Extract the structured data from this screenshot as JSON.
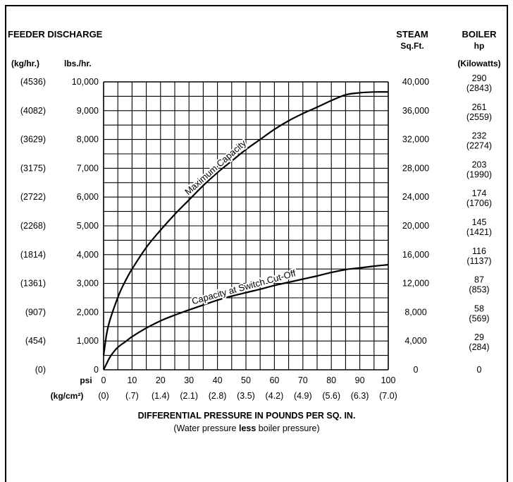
{
  "chart_data": {
    "type": "line",
    "title": "FEEDER DISCHARGE",
    "left_headers": {
      "metric": "(kg/hr.)",
      "imperial": "lbs./hr."
    },
    "right_headers": {
      "steam_title": "STEAM",
      "steam_sub": "Sq.Ft.",
      "boiler_title": "BOILER",
      "boiler_sub1": "hp",
      "boiler_sub2": "(Kilowatts)"
    },
    "y_ticks_lbs": [
      "0",
      "1,000",
      "2,000",
      "3,000",
      "4,000",
      "5,000",
      "6,000",
      "7,000",
      "8,000",
      "9,000",
      "10,000"
    ],
    "y_ticks_kg": [
      "(0)",
      "(454)",
      "(907)",
      "(1361)",
      "(1814)",
      "(2268)",
      "(2722)",
      "(3175)",
      "(3629)",
      "(4082)",
      "(4536)"
    ],
    "y_ticks_steam": [
      "0",
      "4,000",
      "8,000",
      "12,000",
      "16,000",
      "20,000",
      "24,000",
      "28,000",
      "32,000",
      "36,000",
      "40,000"
    ],
    "y_ticks_hp": [
      "0",
      "29",
      "58",
      "87",
      "116",
      "145",
      "174",
      "203",
      "232",
      "261",
      "290"
    ],
    "y_ticks_kw": [
      "",
      "(284)",
      "(569)",
      "(853)",
      "(1137)",
      "(1421)",
      "(1706)",
      "(1990)",
      "(2274)",
      "(2559)",
      "(2843)"
    ],
    "x_unit_psi": "psi",
    "x_unit_kg": "(kg/cm²)",
    "x_ticks_psi": [
      "0",
      "10",
      "20",
      "30",
      "40",
      "50",
      "60",
      "70",
      "80",
      "90",
      "100"
    ],
    "x_ticks_kg": [
      "(0)",
      "(.7)",
      "(1.4)",
      "(2.1)",
      "(2.8)",
      "(3.5)",
      "(4.2)",
      "(4.9)",
      "(5.6)",
      "(6.3)",
      "(7.0)"
    ],
    "xlabel": "DIFFERENTIAL PRESSURE IN POUNDS PER SQ. IN.",
    "xlabel_sub": {
      "pre": "(Water pressure ",
      "bold": "less",
      "post": " boiler pressure)"
    },
    "xlim": [
      0,
      100
    ],
    "ylim": [
      0,
      10000
    ],
    "grid": true,
    "series": [
      {
        "name": "Maximum Capacity",
        "x": [
          0,
          1,
          2,
          4,
          6,
          8,
          10,
          15,
          20,
          25,
          30,
          35,
          40,
          45,
          50,
          55,
          60,
          65,
          70,
          75,
          80,
          85,
          90,
          95,
          100
        ],
        "y": [
          500,
          1200,
          1650,
          2250,
          2750,
          3150,
          3500,
          4250,
          4850,
          5400,
          5900,
          6400,
          6850,
          7250,
          7650,
          8000,
          8350,
          8650,
          8900,
          9120,
          9350,
          9550,
          9620,
          9650,
          9650
        ]
      },
      {
        "name": "Capacity at Switch Cut-Off",
        "x": [
          0,
          1,
          2,
          3,
          5,
          8,
          10,
          15,
          20,
          25,
          30,
          35,
          40,
          45,
          50,
          55,
          60,
          65,
          70,
          75,
          80,
          85,
          90,
          95,
          100
        ],
        "y": [
          0,
          200,
          400,
          550,
          780,
          1000,
          1150,
          1450,
          1700,
          1900,
          2080,
          2250,
          2420,
          2560,
          2680,
          2800,
          2930,
          3040,
          3150,
          3260,
          3380,
          3480,
          3540,
          3600,
          3650
        ]
      }
    ]
  }
}
